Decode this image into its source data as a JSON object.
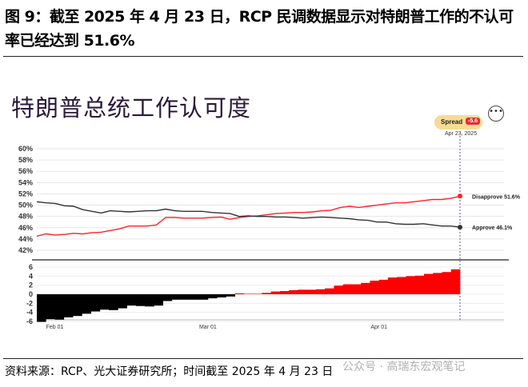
{
  "figure_title": "图 9：截至 2025 年 4 月 23 日，RCP 民调数据显示对特朗普工作的不认可率已经达到 51.6%",
  "chart_title": "特朗普总统工作认可度",
  "spread": {
    "label": "Spread",
    "value": "-5.6",
    "date": "Apr 23, 2025"
  },
  "menu_icon": "more-dots-icon",
  "source": "资料来源：RCP、光大证券研究所；时间截至 2025 年 4 月 23 日",
  "watermark": "公众号 · 高瑞东宏观笔记",
  "colors": {
    "approve": "#333333",
    "disapprove": "#ff2222",
    "negative_bar": "#000000",
    "positive_bar": "#ff0000",
    "accent": "#f5dc96"
  },
  "chart_data": [
    {
      "type": "line",
      "x_ticks": [
        "Feb 01",
        "Mar 01",
        "Apr 01"
      ],
      "y_ticks": [
        "60%",
        "58%",
        "56%",
        "54%",
        "52%",
        "50%",
        "48%",
        "46%",
        "44%",
        "42%"
      ],
      "ylim": [
        42,
        60
      ],
      "series": [
        {
          "name": "Disapprove",
          "end_label": "Disapprove 51.6%",
          "color": "#ff2222",
          "values": [
            44.5,
            44.9,
            44.7,
            44.8,
            45.0,
            44.9,
            45.1,
            45.2,
            45.5,
            45.8,
            46.3,
            46.3,
            46.3,
            46.5,
            47.8,
            47.8,
            47.7,
            47.7,
            47.7,
            47.8,
            47.9,
            47.5,
            47.8,
            48.0,
            48.1,
            48.3,
            48.5,
            48.6,
            48.7,
            48.7,
            48.8,
            49.0,
            49.1,
            49.6,
            49.8,
            49.6,
            49.8,
            50.0,
            50.2,
            50.4,
            50.4,
            50.6,
            50.8,
            51.0,
            51.0,
            51.2,
            51.6
          ]
        },
        {
          "name": "Approve",
          "end_label": "Approve 46.1%",
          "color": "#333333",
          "values": [
            50.6,
            50.4,
            50.3,
            49.9,
            49.8,
            49.2,
            48.9,
            48.6,
            49.0,
            48.9,
            48.8,
            48.9,
            49.0,
            49.0,
            49.3,
            49.0,
            48.9,
            48.9,
            48.9,
            48.7,
            48.6,
            48.5,
            48.0,
            48.1,
            48.0,
            48.0,
            47.9,
            47.9,
            47.8,
            47.7,
            47.8,
            47.9,
            47.8,
            47.7,
            47.6,
            47.4,
            47.3,
            47.0,
            47.0,
            46.7,
            46.6,
            46.6,
            46.7,
            46.5,
            46.3,
            46.3,
            46.1
          ]
        }
      ]
    },
    {
      "type": "bar",
      "name": "Spread",
      "y_ticks": [
        "6",
        "4",
        "2",
        "0",
        "-2",
        "-4",
        "-6"
      ],
      "ylim": [
        -6,
        7
      ],
      "values": [
        -6.1,
        -5.5,
        -5.6,
        -5.1,
        -4.8,
        -4.3,
        -3.8,
        -3.4,
        -3.5,
        -3.1,
        -2.5,
        -2.6,
        -2.7,
        -2.5,
        -1.5,
        -1.2,
        -1.2,
        -1.2,
        -1.2,
        -0.9,
        -0.7,
        -0.5,
        0.2,
        0.1,
        0.1,
        0.3,
        0.6,
        0.7,
        0.9,
        1.0,
        1.0,
        1.1,
        1.3,
        1.9,
        2.2,
        2.2,
        2.5,
        3.0,
        3.2,
        3.7,
        3.8,
        4.0,
        4.1,
        4.5,
        4.7,
        4.9,
        5.5
      ]
    }
  ]
}
